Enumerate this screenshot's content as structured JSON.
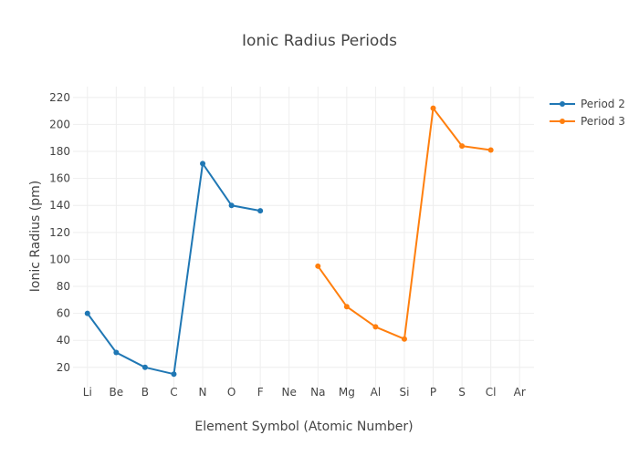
{
  "chart_data": {
    "type": "line",
    "title": "Ionic Radius Periods",
    "xlabel": "Element Symbol (Atomic Number)",
    "ylabel": "Ionic Radius (pm)",
    "categories": [
      "Li",
      "Be",
      "B",
      "C",
      "N",
      "O",
      "F",
      "Ne",
      "Na",
      "Mg",
      "Al",
      "Si",
      "P",
      "S",
      "Cl",
      "Ar"
    ],
    "ylim": [
      5,
      228
    ],
    "yticks": [
      20,
      40,
      60,
      80,
      100,
      120,
      140,
      160,
      180,
      200,
      220
    ],
    "grid": true,
    "legend": "top-right",
    "series": [
      {
        "name": "Period 2",
        "color": "#1f77b4",
        "x": [
          "Li",
          "Be",
          "B",
          "C",
          "N",
          "O",
          "F"
        ],
        "values": [
          60,
          31,
          20,
          15,
          171,
          140,
          136
        ]
      },
      {
        "name": "Period 3",
        "color": "#ff7f0e",
        "x": [
          "Na",
          "Mg",
          "Al",
          "Si",
          "P",
          "S",
          "Cl"
        ],
        "values": [
          95,
          65,
          50,
          41,
          212,
          184,
          181
        ]
      }
    ]
  }
}
